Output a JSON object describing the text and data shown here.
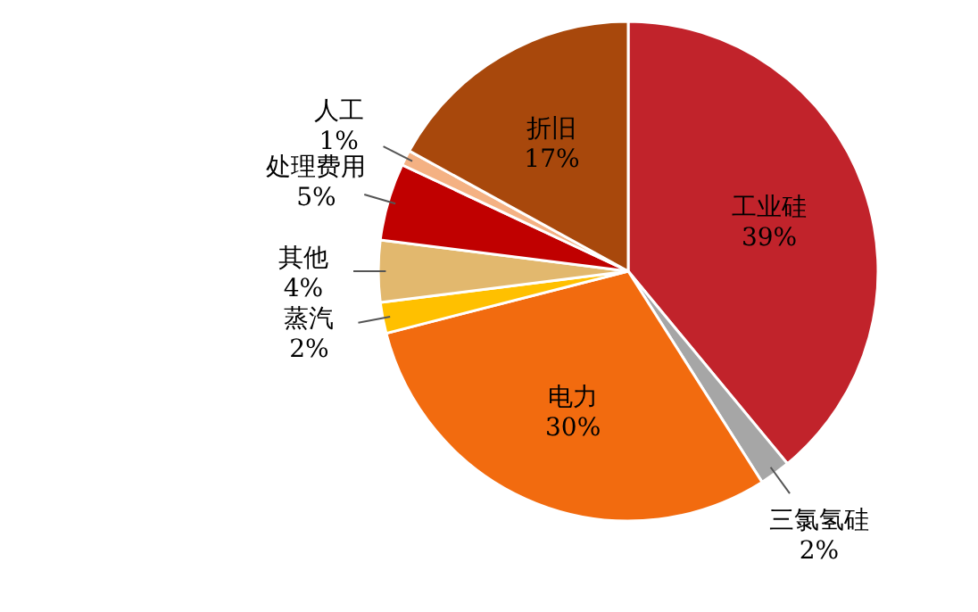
{
  "chart_data": {
    "type": "pie",
    "categories": [
      "工业硅",
      "三氯氢硅",
      "电力",
      "蒸汽",
      "其他",
      "处理费用",
      "人工",
      "折旧"
    ],
    "values": [
      39,
      2,
      30,
      2,
      4,
      5,
      1,
      17
    ],
    "colors": [
      "#c1232b",
      "#a6a6a6",
      "#f26b0f",
      "#ffc000",
      "#e2b86e",
      "#c00000",
      "#f4b183",
      "#a8480c"
    ],
    "value_labels": [
      "39%",
      "2%",
      "30%",
      "2%",
      "4%",
      "5%",
      "1%",
      "17%"
    ]
  }
}
